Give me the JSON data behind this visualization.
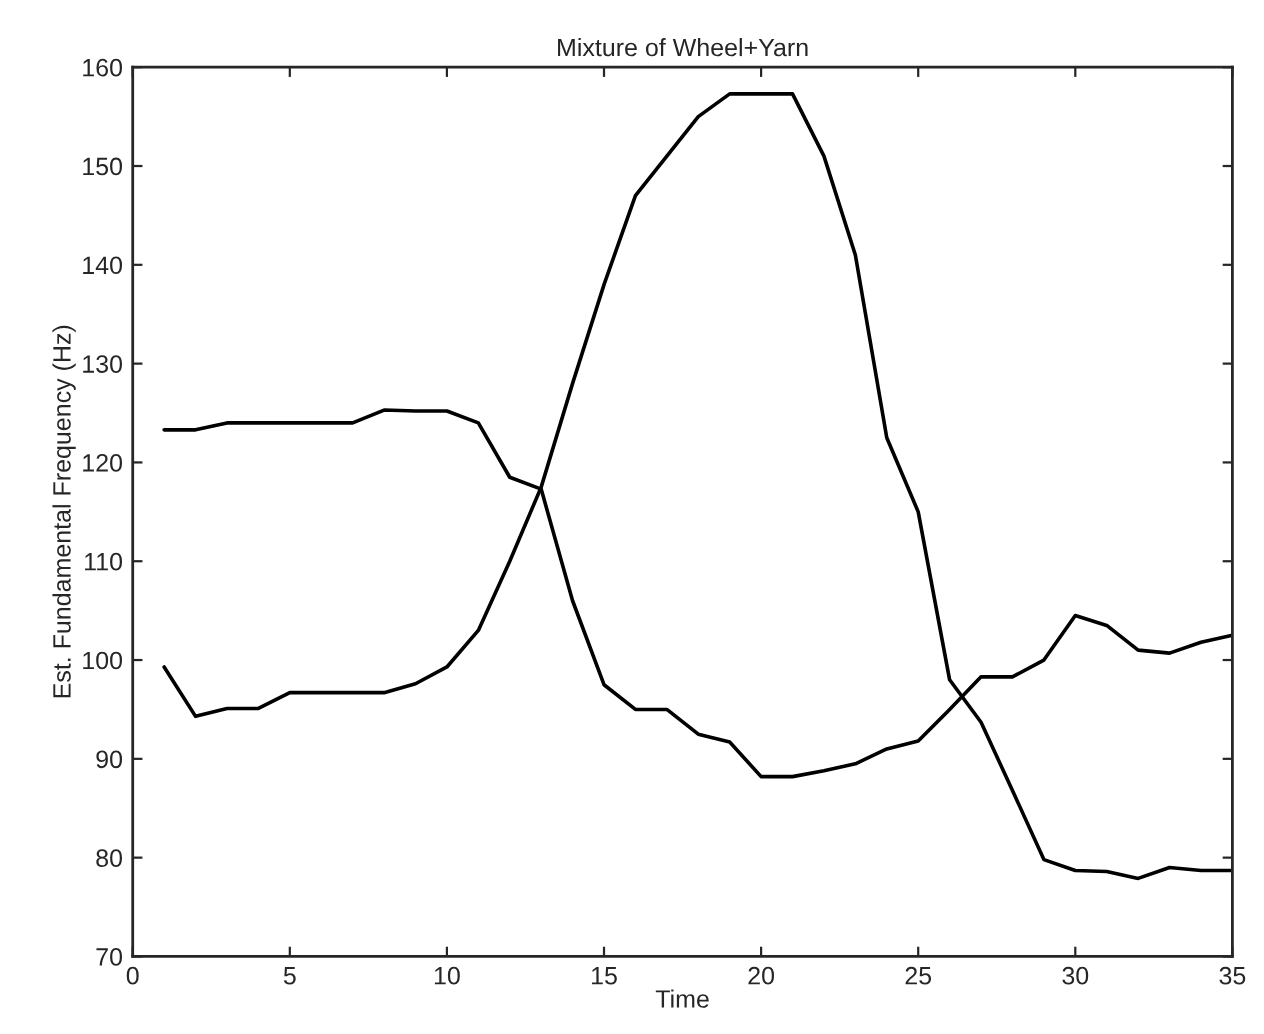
{
  "chart_data": {
    "type": "line",
    "title": "Mixture of Wheel+Yarn",
    "xlabel": "Time",
    "ylabel": "Est. Fundamental Frequency (Hz)",
    "x": [
      1,
      2,
      3,
      4,
      5,
      6,
      7,
      8,
      9,
      10,
      11,
      12,
      13,
      14,
      15,
      16,
      17,
      18,
      19,
      20,
      21,
      22,
      23,
      24,
      25,
      26,
      27,
      28,
      29,
      30,
      31,
      32,
      33,
      34,
      35
    ],
    "series": [
      {
        "color": "#000000",
        "values": [
          123.3,
          123.3,
          124,
          124,
          124,
          124,
          124,
          125.3,
          125.2,
          125.2,
          124,
          118.5,
          117.3,
          106,
          97.5,
          95,
          95,
          92.5,
          91.7,
          88.2,
          88.2,
          88.8,
          89.5,
          91,
          91.8,
          95,
          98.3,
          98.3,
          100,
          104.5,
          103.5,
          101,
          100.7,
          101.8,
          102.5
        ]
      },
      {
        "color": "#000000",
        "values": [
          99.3,
          94.3,
          95.1,
          95.1,
          96.7,
          96.7,
          96.7,
          96.7,
          97.6,
          99.3,
          103,
          110,
          117.5,
          128,
          138,
          147,
          151,
          155,
          157.3,
          157.3,
          157.3,
          151,
          141,
          122.5,
          115,
          98,
          93.7,
          86.8,
          79.8,
          78.7,
          78.6,
          77.9,
          79,
          78.7,
          78.7
        ]
      }
    ],
    "xlim": [
      0,
      35
    ],
    "ylim": [
      70,
      160
    ],
    "xticks": [
      0,
      5,
      10,
      15,
      20,
      25,
      30,
      35
    ],
    "yticks": [
      70,
      80,
      90,
      100,
      110,
      120,
      130,
      140,
      150,
      160
    ],
    "grid": false,
    "marker": "none",
    "line_style": "solid"
  }
}
